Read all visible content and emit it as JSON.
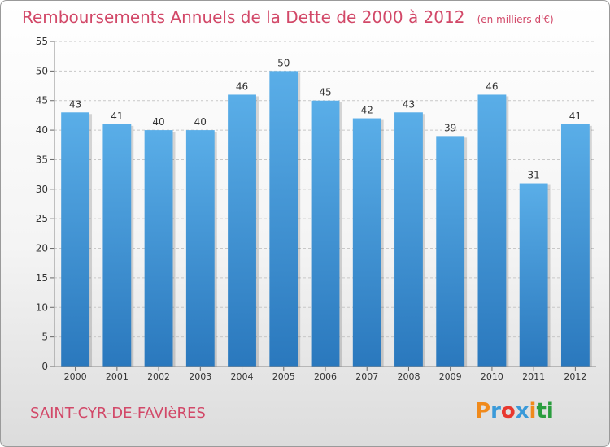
{
  "header": {
    "title": "Remboursements Annuels de la Dette de 2000 à 2012",
    "unit": "(en milliers d'€)"
  },
  "footer": {
    "commune": "SAINT-CYR-DE-FAVIèRES",
    "logo_text": "Proxiti"
  },
  "colors": {
    "title": "#d24868",
    "bar_top": "#5aaee8",
    "bar_bottom": "#2a78bd",
    "logo": [
      "#f08a1c",
      "#3a9ad9",
      "#e8382f",
      "#3a9ad9",
      "#f08a1c",
      "#2a9d3e",
      "#2a9d3e"
    ]
  },
  "chart_data": {
    "type": "bar",
    "title": "Remboursements Annuels de la Dette de 2000 à 2012",
    "categories": [
      "2000",
      "2001",
      "2002",
      "2003",
      "2004",
      "2005",
      "2006",
      "2007",
      "2008",
      "2009",
      "2010",
      "2011",
      "2012"
    ],
    "values": [
      43,
      41,
      40,
      40,
      46,
      50,
      45,
      42,
      43,
      39,
      46,
      31,
      41
    ],
    "ylim": [
      0,
      55
    ],
    "yticks": [
      0,
      5,
      10,
      15,
      20,
      25,
      30,
      35,
      40,
      45,
      50,
      55
    ],
    "grid": true,
    "data_labels": true
  }
}
